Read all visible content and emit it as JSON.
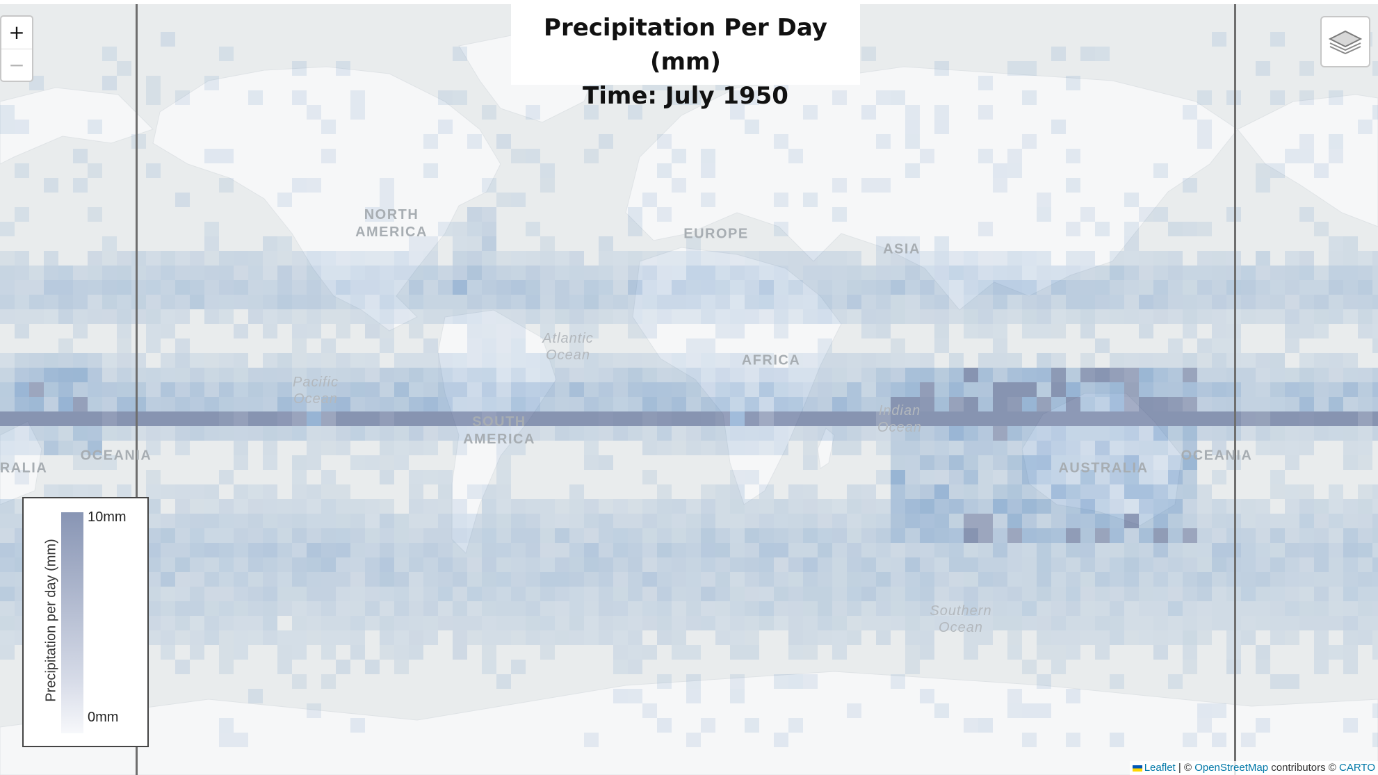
{
  "map": {
    "title_line1": "Precipitation Per Day (mm)",
    "title_line2": "Time: July 1950",
    "labels": {
      "north_america": "NORTH\nAMERICA",
      "europe": "EUROPE",
      "asia": "ASIA",
      "africa": "AFRICA",
      "south_america": "SOUTH\nAMERICA",
      "australia": "AUSTRALIA",
      "australia_left": "RALIA",
      "oceania": "OCEANIA",
      "oceania_right": "OCEANIA",
      "atlantic": "Atlantic\nOcean",
      "pacific": "Pacific\nOcean",
      "indian": "Indian\nOcean",
      "southern": "Southern\nOcean"
    }
  },
  "controls": {
    "zoom_in": "+",
    "zoom_out": "−",
    "layers_icon": "layers-icon"
  },
  "legend": {
    "title": "Precipitation per day (mm)",
    "max_label": "10mm",
    "min_label": "0mm",
    "color_max": "#8895b4",
    "color_min": "#f7f8fb"
  },
  "attribution": {
    "leaflet": "Leaflet",
    "sep1": " | © ",
    "osm": "OpenStreetMap",
    "contrib": " contributors © ",
    "carto": "CARTO"
  },
  "colors": {
    "ocean": "#e9eced",
    "land": "#f6f7f8",
    "precip": "#2f6db3",
    "heavy": "#3a4e82"
  }
}
